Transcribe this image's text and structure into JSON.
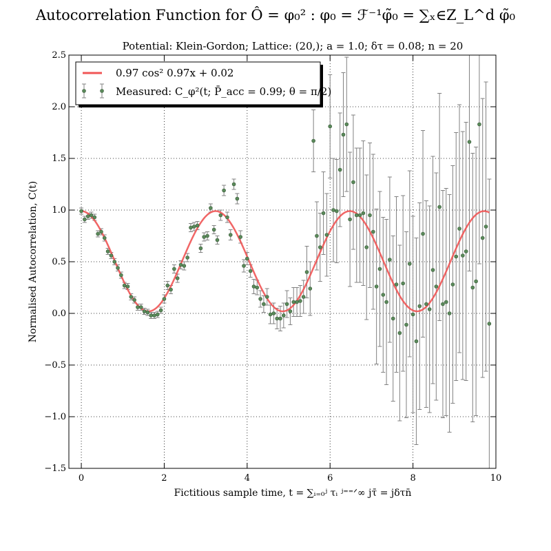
{
  "title": "Autocorrelation Function for Ô = φ₀² : φ₀ = ℱ⁻¹φ̃₀ = ∑ₓ∈Z_L^d φ̃₀",
  "subtitle": "Potential: Klein-Gordon; Lattice: (20,); a = 1.0; δτ = 0.08; n = 20",
  "chart_data": {
    "type": "scatter",
    "xlabel": "Fictitious sample time, t = ∑ᵢ₌₀ʲ τᵢ  ʲ⁼⁼ᐟ∞  jτ̄ = jδτn̄",
    "ylabel": "Normalised Autocorrelation, C(t)",
    "xlim": [
      -0.3,
      10
    ],
    "ylim": [
      -1.5,
      2.5
    ],
    "x_ticks": [
      0,
      2,
      4,
      6,
      8,
      10
    ],
    "y_ticks": [
      -1.5,
      -1.0,
      -0.5,
      0.0,
      0.5,
      1.0,
      1.5,
      2.0,
      2.5
    ],
    "x_tick_labels": [
      "0",
      "2",
      "4",
      "6",
      "8",
      "10"
    ],
    "y_tick_labels": [
      "−1.5",
      "−1.0",
      "−0.5",
      "0.0",
      "0.5",
      "1.0",
      "1.5",
      "2.0",
      "2.5"
    ],
    "grid": true,
    "legend_position": "top-left",
    "series": [
      {
        "name": "0.97 cos² 0.97x + 0.02",
        "kind": "line",
        "color": "#f05555",
        "amplitude": 0.97,
        "frequency": 0.97,
        "offset": 0.02
      },
      {
        "name": "Measured: C_φ²(t; P̄_acc = 0.99; θ = π/2)",
        "kind": "errorbar",
        "marker_color": "#5a8a5a",
        "errorbar_color": "#808080",
        "x": [
          0.0,
          0.08,
          0.16,
          0.24,
          0.32,
          0.4,
          0.48,
          0.56,
          0.64,
          0.72,
          0.8,
          0.88,
          0.96,
          1.04,
          1.12,
          1.2,
          1.28,
          1.36,
          1.44,
          1.52,
          1.6,
          1.68,
          1.76,
          1.84,
          1.92,
          2.0,
          2.08,
          2.16,
          2.24,
          2.32,
          2.4,
          2.48,
          2.56,
          2.64,
          2.72,
          2.8,
          2.88,
          2.96,
          3.04,
          3.12,
          3.2,
          3.28,
          3.36,
          3.44,
          3.52,
          3.6,
          3.68,
          3.76,
          3.84,
          3.92,
          4.0,
          4.08,
          4.16,
          4.24,
          4.32,
          4.4,
          4.48,
          4.56,
          4.64,
          4.72,
          4.8,
          4.88,
          4.96,
          5.04,
          5.12,
          5.2,
          5.28,
          5.36,
          5.44,
          5.52,
          5.6,
          5.68,
          5.76,
          5.84,
          5.92,
          6.0,
          6.08,
          6.16,
          6.24,
          6.32,
          6.4,
          6.48,
          6.56,
          6.64,
          6.72,
          6.8,
          6.88,
          6.96,
          7.04,
          7.12,
          7.2,
          7.28,
          7.36,
          7.44,
          7.52,
          7.6,
          7.68,
          7.76,
          7.84,
          7.92,
          8.0,
          8.08,
          8.16,
          8.24,
          8.32,
          8.4,
          8.48,
          8.56,
          8.64,
          8.72,
          8.8,
          8.88,
          8.96,
          9.04,
          9.12,
          9.2,
          9.28,
          9.36,
          9.44,
          9.52,
          9.6,
          9.68,
          9.76,
          9.84
        ],
        "y": [
          0.99,
          0.91,
          0.94,
          0.95,
          0.93,
          0.77,
          0.79,
          0.73,
          0.6,
          0.56,
          0.5,
          0.44,
          0.37,
          0.27,
          0.26,
          0.16,
          0.13,
          0.06,
          0.06,
          0.02,
          0.01,
          -0.02,
          -0.02,
          -0.01,
          0.03,
          0.14,
          0.27,
          0.23,
          0.43,
          0.34,
          0.47,
          0.46,
          0.54,
          0.83,
          0.84,
          0.85,
          0.63,
          0.74,
          0.75,
          1.02,
          0.81,
          0.71,
          0.95,
          1.19,
          0.93,
          0.76,
          1.25,
          1.11,
          0.74,
          0.46,
          0.53,
          0.41,
          0.26,
          0.25,
          0.14,
          0.09,
          0.16,
          -0.01,
          0.0,
          -0.05,
          -0.05,
          -0.02,
          0.09,
          0.02,
          0.11,
          0.11,
          0.12,
          0.16,
          0.4,
          0.24,
          1.67,
          0.75,
          0.64,
          0.97,
          0.76,
          1.81,
          1.0,
          0.99,
          1.39,
          1.73,
          1.83,
          0.91,
          1.27,
          0.95,
          0.95,
          0.97,
          0.64,
          0.95,
          0.79,
          0.26,
          0.43,
          0.18,
          0.11,
          0.52,
          -0.05,
          0.28,
          -0.19,
          0.29,
          -0.11,
          0.48,
          -0.01,
          -0.27,
          0.07,
          0.77,
          0.09,
          0.04,
          0.42,
          0.26,
          1.03,
          0.09,
          0.11,
          0.0,
          0.28,
          0.55,
          0.82,
          0.56,
          0.6,
          1.66,
          0.25,
          0.31,
          1.83,
          0.73,
          0.84,
          -0.1
        ],
        "yerr": [
          0.03,
          0.03,
          0.03,
          0.03,
          0.03,
          0.03,
          0.03,
          0.03,
          0.03,
          0.03,
          0.03,
          0.03,
          0.03,
          0.03,
          0.03,
          0.03,
          0.03,
          0.03,
          0.03,
          0.03,
          0.03,
          0.03,
          0.03,
          0.03,
          0.03,
          0.04,
          0.04,
          0.04,
          0.04,
          0.04,
          0.04,
          0.04,
          0.04,
          0.04,
          0.04,
          0.04,
          0.04,
          0.04,
          0.04,
          0.04,
          0.04,
          0.04,
          0.05,
          0.05,
          0.05,
          0.05,
          0.05,
          0.05,
          0.06,
          0.06,
          0.06,
          0.06,
          0.07,
          0.07,
          0.08,
          0.08,
          0.08,
          0.09,
          0.1,
          0.1,
          0.12,
          0.12,
          0.13,
          0.13,
          0.14,
          0.14,
          0.15,
          0.16,
          0.25,
          0.26,
          0.3,
          0.33,
          0.33,
          0.4,
          0.4,
          0.5,
          0.5,
          0.5,
          0.55,
          0.6,
          0.65,
          0.65,
          0.65,
          0.65,
          0.65,
          0.7,
          0.7,
          0.7,
          0.75,
          0.75,
          0.75,
          0.75,
          0.8,
          0.8,
          0.8,
          0.85,
          0.85,
          0.85,
          0.9,
          0.9,
          0.95,
          1.0,
          1.0,
          1.0,
          1.0,
          1.0,
          1.1,
          1.1,
          1.1,
          1.1,
          1.1,
          1.15,
          1.15,
          1.2,
          1.2,
          1.2,
          1.25,
          1.25,
          1.3,
          1.3,
          1.35,
          1.35,
          1.4,
          1.4
        ]
      }
    ]
  }
}
